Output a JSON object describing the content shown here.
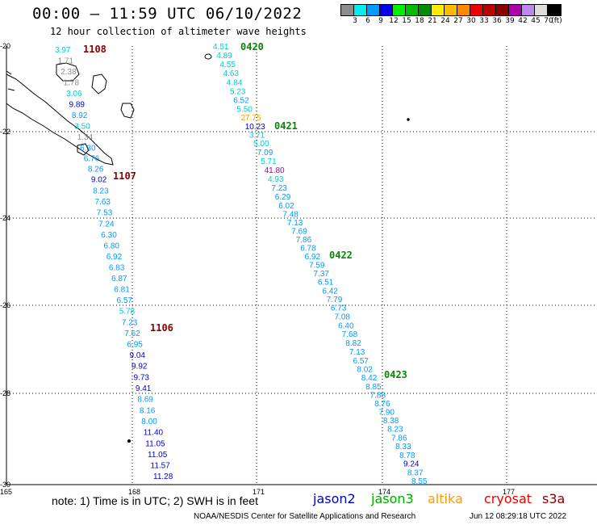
{
  "header": {
    "title": "00:00 – 11:59 UTC 06/10/2022",
    "subtitle": "12 hour collection of altimeter wave heights"
  },
  "legend": {
    "unit": "(ft)",
    "bins": [
      {
        "label": "3",
        "color": "#8c8c8c"
      },
      {
        "label": "6",
        "color": "#00eeee"
      },
      {
        "label": "9",
        "color": "#0099ff"
      },
      {
        "label": "12",
        "color": "#0000ee"
      },
      {
        "label": "15",
        "color": "#00ee00"
      },
      {
        "label": "18",
        "color": "#00bb00"
      },
      {
        "label": "21",
        "color": "#008c00"
      },
      {
        "label": "24",
        "color": "#ffee00"
      },
      {
        "label": "27",
        "color": "#ffbb00"
      },
      {
        "label": "30",
        "color": "#ff8800"
      },
      {
        "label": "33",
        "color": "#ee0000"
      },
      {
        "label": "36",
        "color": "#bb0000"
      },
      {
        "label": "39",
        "color": "#880000"
      },
      {
        "label": "42",
        "color": "#aa00aa"
      },
      {
        "label": "45",
        "color": "#bb88ee"
      },
      {
        "label": "70",
        "color": "#dddddd"
      },
      {
        "label": "",
        "color": "#000000"
      }
    ]
  },
  "axes": {
    "x_ticks": [
      "165",
      "168",
      "171",
      "174",
      "177"
    ],
    "y_ticks": [
      "-20",
      "-22",
      "-24",
      "-26",
      "-28",
      "-30"
    ]
  },
  "passes": {
    "west_track": [
      {
        "time": "1108",
        "color": "#8b0000"
      },
      {
        "time": "1107",
        "color": "#8b0000"
      },
      {
        "time": "1106",
        "color": "#8b0000"
      }
    ],
    "east_track": [
      {
        "time": "0420",
        "color": "#008c00"
      },
      {
        "time": "0421",
        "color": "#008c00"
      },
      {
        "time": "0422",
        "color": "#008c00"
      },
      {
        "time": "0423",
        "color": "#008c00"
      }
    ]
  },
  "observations": {
    "west": [
      {
        "v": "3.97",
        "c": "#00cccc"
      },
      {
        "v": "1.71",
        "c": "#8c8c8c"
      },
      {
        "v": "2.38",
        "c": "#8c8c8c"
      },
      {
        "v": "1.78",
        "c": "#8c8c8c"
      },
      {
        "v": "3.06",
        "c": "#00cccc"
      },
      {
        "v": "9.89",
        "c": "#0000cc"
      },
      {
        "v": "8.92",
        "c": "#0099ff"
      },
      {
        "v": "3.50",
        "c": "#00cccc"
      },
      {
        "v": "1.34",
        "c": "#8c8c8c"
      },
      {
        "v": "6.30",
        "c": "#0099ff"
      },
      {
        "v": "6.76",
        "c": "#0099ff"
      },
      {
        "v": "8.26",
        "c": "#0099ff"
      },
      {
        "v": "9.02",
        "c": "#0000cc"
      },
      {
        "v": "8.23",
        "c": "#0099ff"
      },
      {
        "v": "7.63",
        "c": "#0099ff"
      },
      {
        "v": "7.53",
        "c": "#0099ff"
      },
      {
        "v": "7.24",
        "c": "#0099ff"
      },
      {
        "v": "6.30",
        "c": "#0099ff"
      },
      {
        "v": "6.80",
        "c": "#0099ff"
      },
      {
        "v": "6.92",
        "c": "#0099ff"
      },
      {
        "v": "6.83",
        "c": "#0099ff"
      },
      {
        "v": "6.87",
        "c": "#0099ff"
      },
      {
        "v": "6.81",
        "c": "#0099ff"
      },
      {
        "v": "6.57",
        "c": "#0099ff"
      },
      {
        "v": "5.78",
        "c": "#00cccc"
      },
      {
        "v": "7.23",
        "c": "#0099ff"
      },
      {
        "v": "7.62",
        "c": "#0099ff"
      },
      {
        "v": "6.95",
        "c": "#0099ff"
      },
      {
        "v": "9.04",
        "c": "#0000cc"
      },
      {
        "v": "9.92",
        "c": "#0000cc"
      },
      {
        "v": "9.73",
        "c": "#0000cc"
      },
      {
        "v": "9.41",
        "c": "#0000cc"
      },
      {
        "v": "8.69",
        "c": "#0099ff"
      },
      {
        "v": "8.16",
        "c": "#0099ff"
      },
      {
        "v": "8.00",
        "c": "#0099ff"
      },
      {
        "v": "11.40",
        "c": "#0000cc"
      },
      {
        "v": "11.05",
        "c": "#0000cc"
      },
      {
        "v": "11.05",
        "c": "#0000cc"
      },
      {
        "v": "11.57",
        "c": "#0000cc"
      },
      {
        "v": "11.28",
        "c": "#0000cc"
      }
    ],
    "east": [
      {
        "v": "4.51",
        "c": "#00cccc"
      },
      {
        "v": "4.89",
        "c": "#00cccc"
      },
      {
        "v": "4.55",
        "c": "#00cccc"
      },
      {
        "v": "4.63",
        "c": "#00cccc"
      },
      {
        "v": "4.84",
        "c": "#00cccc"
      },
      {
        "v": "5.23",
        "c": "#00cccc"
      },
      {
        "v": "6.52",
        "c": "#0099ff"
      },
      {
        "v": "5.50",
        "c": "#00cccc"
      },
      {
        "v": "27.75",
        "c": "#ff9900"
      },
      {
        "v": "10.23",
        "c": "#0000cc"
      },
      {
        "v": "3.71",
        "c": "#00cccc"
      },
      {
        "v": "5.00",
        "c": "#00cccc"
      },
      {
        "v": "7.09",
        "c": "#0099ff"
      },
      {
        "v": "5.71",
        "c": "#00cccc"
      },
      {
        "v": "41.80",
        "c": "#aa00aa"
      },
      {
        "v": "4.93",
        "c": "#00cccc"
      },
      {
        "v": "7.23",
        "c": "#0099ff"
      },
      {
        "v": "6.29",
        "c": "#0099ff"
      },
      {
        "v": "6.02",
        "c": "#0099ff"
      },
      {
        "v": "7.48",
        "c": "#0099ff"
      },
      {
        "v": "7.13",
        "c": "#0099ff"
      },
      {
        "v": "7.69",
        "c": "#0099ff"
      },
      {
        "v": "7.86",
        "c": "#0099ff"
      },
      {
        "v": "6.78",
        "c": "#0099ff"
      },
      {
        "v": "6.92",
        "c": "#0099ff"
      },
      {
        "v": "7.59",
        "c": "#0099ff"
      },
      {
        "v": "7.37",
        "c": "#0099ff"
      },
      {
        "v": "6.51",
        "c": "#0099ff"
      },
      {
        "v": "6.42",
        "c": "#0099ff"
      },
      {
        "v": "7.79",
        "c": "#0099ff"
      },
      {
        "v": "6.73",
        "c": "#0099ff"
      },
      {
        "v": "7.08",
        "c": "#0099ff"
      },
      {
        "v": "6.40",
        "c": "#0099ff"
      },
      {
        "v": "7.68",
        "c": "#0099ff"
      },
      {
        "v": "8.82",
        "c": "#0099ff"
      },
      {
        "v": "7.13",
        "c": "#0099ff"
      },
      {
        "v": "6.57",
        "c": "#0099ff"
      },
      {
        "v": "8.02",
        "c": "#0099ff"
      },
      {
        "v": "8.42",
        "c": "#0099ff"
      },
      {
        "v": "8.85",
        "c": "#0099ff"
      },
      {
        "v": "7.88",
        "c": "#0099ff"
      },
      {
        "v": "8.76",
        "c": "#0099ff"
      },
      {
        "v": "7.90",
        "c": "#0099ff"
      },
      {
        "v": "8.38",
        "c": "#0099ff"
      },
      {
        "v": "8.23",
        "c": "#0099ff"
      },
      {
        "v": "7.86",
        "c": "#0099ff"
      },
      {
        "v": "8.33",
        "c": "#0099ff"
      },
      {
        "v": "8.78",
        "c": "#0099ff"
      },
      {
        "v": "9.24",
        "c": "#0000cc"
      },
      {
        "v": "8.37",
        "c": "#0099ff"
      },
      {
        "v": "8.55",
        "c": "#0099ff"
      }
    ]
  },
  "footer": {
    "note": "note:  1) Time is in UTC;  2) SWH is in feet",
    "satellites": [
      {
        "name": "jason2",
        "color": "#0000cc"
      },
      {
        "name": "jason3",
        "color": "#00aa00"
      },
      {
        "name": "altika",
        "color": "#ff9900"
      },
      {
        "name": "cryosat",
        "color": "#ee0000"
      },
      {
        "name": "s3a",
        "color": "#880000"
      }
    ],
    "credit": "NOAA/NESDIS Center for Satellite Applications and Research",
    "timestamp": "Jun 12 08:29:18 UTC 2022"
  }
}
